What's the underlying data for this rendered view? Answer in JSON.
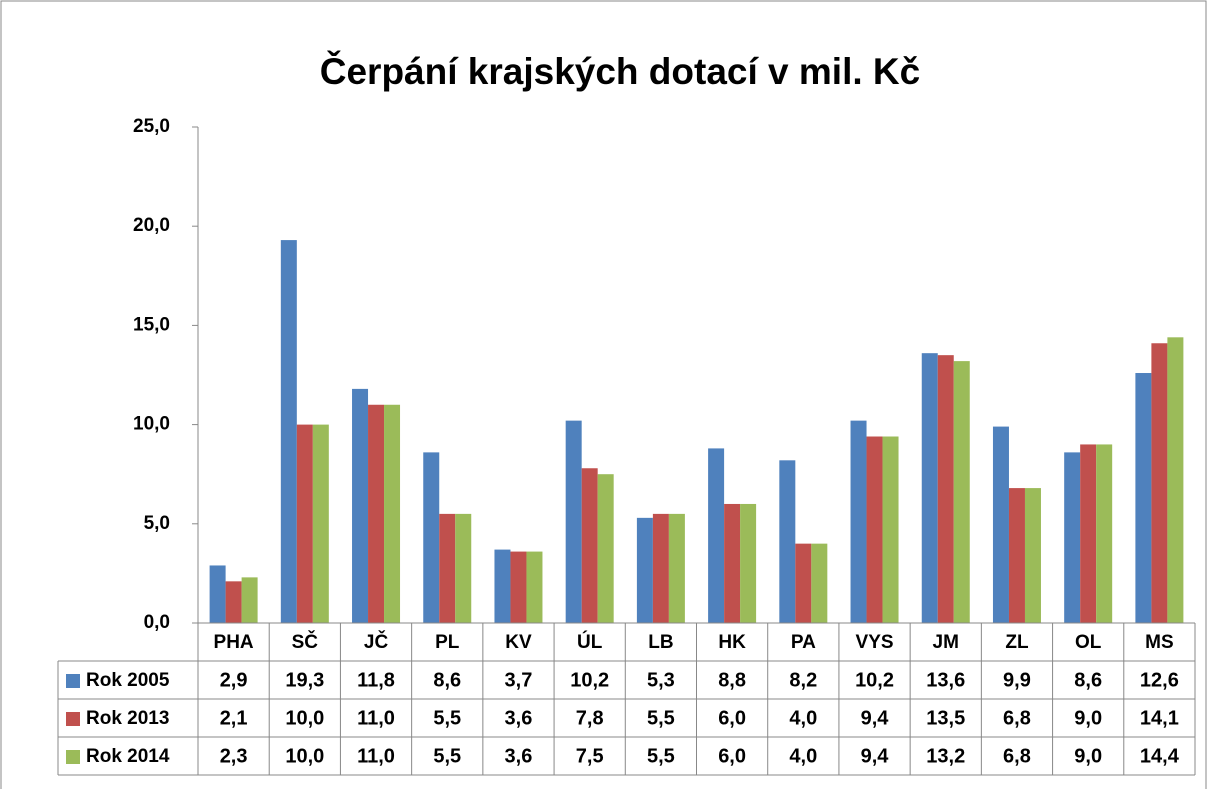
{
  "chart_data": {
    "type": "bar",
    "title": "Čerpání krajských dotací v mil. Kč",
    "categories": [
      "PHA",
      "SČ",
      "JČ",
      "PL",
      "KV",
      "ÚL",
      "LB",
      "HK",
      "PA",
      "VYS",
      "JM",
      "ZL",
      "OL",
      "MS"
    ],
    "series": [
      {
        "name": "Rok 2005",
        "color": "#4F81BD",
        "values": [
          2.9,
          19.3,
          11.8,
          8.6,
          3.7,
          10.2,
          5.3,
          8.8,
          8.2,
          10.2,
          13.6,
          9.9,
          8.6,
          12.6
        ],
        "value_labels": [
          "2,9",
          "19,3",
          "11,8",
          "8,6",
          "3,7",
          "10,2",
          "5,3",
          "8,8",
          "8,2",
          "10,2",
          "13,6",
          "9,9",
          "8,6",
          "12,6"
        ]
      },
      {
        "name": "Rok 2013",
        "color": "#C0504D",
        "values": [
          2.1,
          10.0,
          11.0,
          5.5,
          3.6,
          7.8,
          5.5,
          6.0,
          4.0,
          9.4,
          13.5,
          6.8,
          9.0,
          14.1
        ],
        "value_labels": [
          "2,1",
          "10,0",
          "11,0",
          "5,5",
          "3,6",
          "7,8",
          "5,5",
          "6,0",
          "4,0",
          "9,4",
          "13,5",
          "6,8",
          "9,0",
          "14,1"
        ]
      },
      {
        "name": "Rok 2014",
        "color": "#9BBB59",
        "values": [
          2.3,
          10.0,
          11.0,
          5.5,
          3.6,
          7.5,
          5.5,
          6.0,
          4.0,
          9.4,
          13.2,
          6.8,
          9.0,
          14.4
        ],
        "value_labels": [
          "2,3",
          "10,0",
          "11,0",
          "5,5",
          "3,6",
          "7,5",
          "5,5",
          "6,0",
          "4,0",
          "9,4",
          "13,2",
          "6,8",
          "9,0",
          "14,4"
        ]
      }
    ],
    "ylim": [
      0,
      25
    ],
    "yticks": [
      {
        "value": 0,
        "label": "0,0"
      },
      {
        "value": 5,
        "label": "5,0"
      },
      {
        "value": 10,
        "label": "10,0"
      },
      {
        "value": 15,
        "label": "15,0"
      },
      {
        "value": 20,
        "label": "20,0"
      },
      {
        "value": 25,
        "label": "25,0"
      }
    ],
    "grid": false
  }
}
